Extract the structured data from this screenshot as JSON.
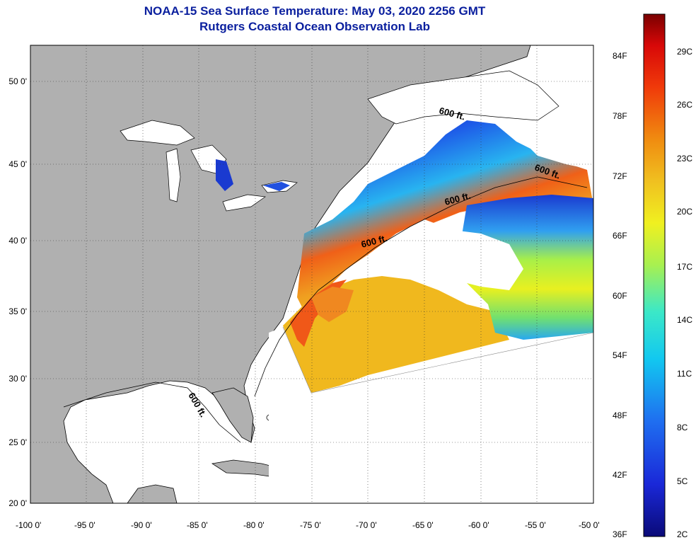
{
  "title_line1": "NOAA-15 Sea Surface Temperature:  May 03, 2020 2256 GMT",
  "title_line2": "Rutgers Coastal Ocean Observation Lab",
  "lat_labels": [
    "50 0'",
    "45 0'",
    "40 0'",
    "35 0'",
    "30 0'",
    "25 0'",
    "20 0'"
  ],
  "lon_labels": [
    "-100 0'",
    "-95 0'",
    "-90 0'",
    "-85 0'",
    "-80 0'",
    "-75 0'",
    "-70 0'",
    "-65 0'",
    "-60 0'",
    "-55 0'",
    "-50 0'"
  ],
  "colorbar": {
    "fahrenheit_labels": [
      "84F",
      "78F",
      "72F",
      "66F",
      "60F",
      "54F",
      "48F",
      "42F",
      "36F"
    ],
    "celsius_labels": [
      "29C",
      "26C",
      "23C",
      "20C",
      "17C",
      "14C",
      "11C",
      "8C",
      "5C",
      "2C"
    ],
    "colors": [
      "#0a0a78",
      "#1a28d8",
      "#1f6ef0",
      "#12c8f0",
      "#3be8c8",
      "#a8f050",
      "#f0f020",
      "#f0c020",
      "#f08c10",
      "#f03a0a",
      "#d80808",
      "#7a0000"
    ]
  },
  "depth_contour_label": "600 ft."
}
